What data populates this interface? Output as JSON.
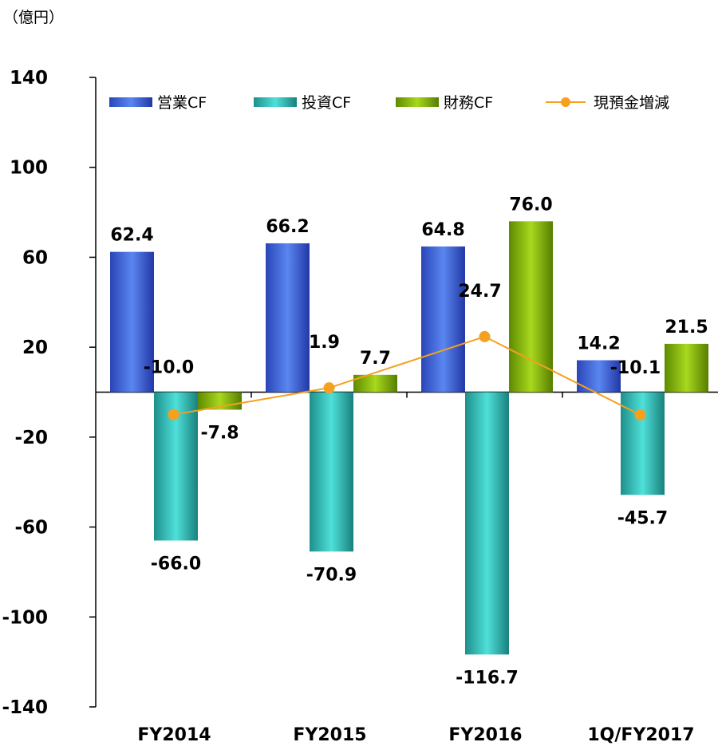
{
  "chart_data": {
    "type": "bar",
    "unit": "（億円）",
    "categories": [
      "FY2014",
      "FY2015",
      "FY2016",
      "1Q/FY2017"
    ],
    "series": [
      {
        "name": "営業CF",
        "kind": "bar",
        "color": "#2f57d6",
        "values": [
          62.4,
          66.2,
          64.8,
          14.2
        ]
      },
      {
        "name": "投資CF",
        "kind": "bar",
        "color": "#2ec4bf",
        "values": [
          -66.0,
          -70.9,
          -116.7,
          -45.7
        ]
      },
      {
        "name": "財務CF",
        "kind": "bar",
        "color": "#86b800",
        "values": [
          -7.8,
          7.7,
          76.0,
          21.5
        ]
      },
      {
        "name": "現預金増減",
        "kind": "line",
        "color": "#f5a01f",
        "values": [
          -10.0,
          1.9,
          24.7,
          -10.1
        ]
      }
    ],
    "y_ticks": [
      140,
      100,
      60,
      20,
      -20,
      -60,
      -100,
      -140
    ],
    "ylim": [
      -140,
      140
    ],
    "grid": false,
    "legend_position": "top"
  }
}
